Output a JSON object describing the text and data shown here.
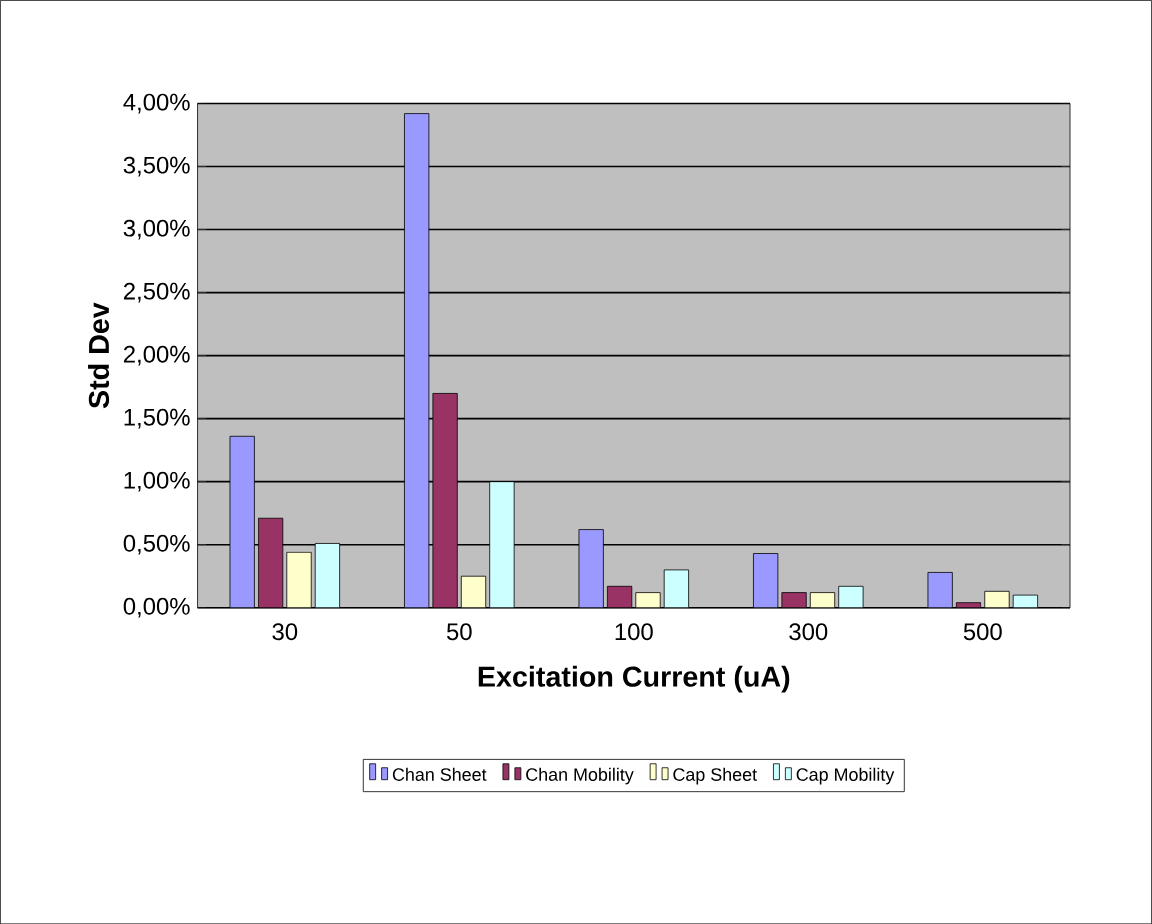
{
  "chart_data": {
    "type": "bar",
    "xlabel": "Excitation Current (uA)",
    "ylabel": "Std Dev",
    "categories": [
      "30",
      "50",
      "100",
      "300",
      "500"
    ],
    "series": [
      {
        "name": "Chan Sheet",
        "color": "#9999ff",
        "values": [
          1.36,
          3.92,
          0.62,
          0.43,
          0.28
        ]
      },
      {
        "name": "Chan Mobility",
        "color": "#993366",
        "values": [
          0.71,
          1.7,
          0.17,
          0.12,
          0.04
        ]
      },
      {
        "name": "Cap Sheet",
        "color": "#ffffcc",
        "values": [
          0.44,
          0.25,
          0.12,
          0.12,
          0.13
        ]
      },
      {
        "name": "Cap Mobility",
        "color": "#ccffff",
        "values": [
          0.51,
          1.0,
          0.3,
          0.17,
          0.1
        ]
      }
    ],
    "ylim": [
      0,
      4
    ],
    "yticks": [
      {
        "value": 0,
        "label": "0,00%"
      },
      {
        "value": 0.5,
        "label": "0,50%"
      },
      {
        "value": 1,
        "label": "1,00%"
      },
      {
        "value": 1.5,
        "label": "1,50%"
      },
      {
        "value": 2,
        "label": "2,00%"
      },
      {
        "value": 2.5,
        "label": "2,50%"
      },
      {
        "value": 3,
        "label": "3,00%"
      },
      {
        "value": 3.5,
        "label": "3,50%"
      },
      {
        "value": 4,
        "label": "4,00%"
      }
    ],
    "grid": "y",
    "legend": "bottom"
  }
}
